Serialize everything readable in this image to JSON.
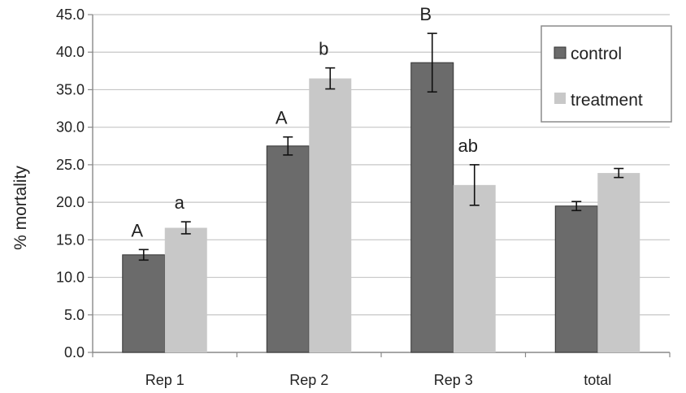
{
  "chart_data": {
    "type": "bar",
    "title": "",
    "xlabel": "",
    "ylabel": "% mortality",
    "ylim": [
      0,
      45
    ],
    "yticks": [
      "0.0",
      "5.0",
      "10.0",
      "15.0",
      "20.0",
      "25.0",
      "30.0",
      "35.0",
      "40.0",
      "45.0"
    ],
    "grid": true,
    "legend_position": "top-right",
    "categories": [
      "Rep 1",
      "Rep 2",
      "Rep 3",
      "total"
    ],
    "series": [
      {
        "name": "control",
        "color": "#6b6b6b",
        "values": [
          13.0,
          27.5,
          38.6,
          19.5
        ],
        "error": [
          0.7,
          1.2,
          3.9,
          0.6
        ],
        "labels": [
          "A",
          "A",
          "B",
          ""
        ]
      },
      {
        "name": "treatment",
        "color": "#c8c8c8",
        "values": [
          16.6,
          36.5,
          22.3,
          23.9
        ],
        "error": [
          0.8,
          1.4,
          2.7,
          0.6
        ],
        "labels": [
          "a",
          "b",
          "ab",
          ""
        ]
      }
    ]
  }
}
